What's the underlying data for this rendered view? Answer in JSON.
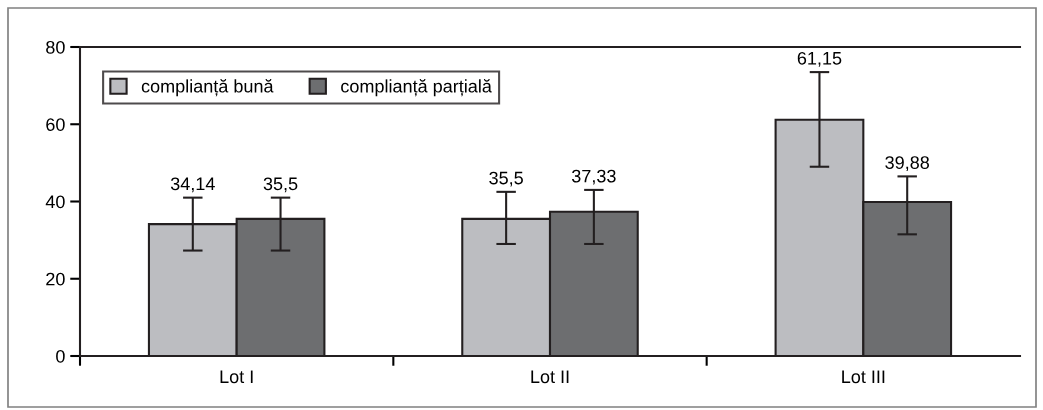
{
  "chart_data": {
    "type": "bar",
    "categories": [
      "Lot I",
      "Lot II",
      "Lot III"
    ],
    "series": [
      {
        "name": "complianță bună",
        "color": "#bcbdc1",
        "values": [
          34.14,
          35.5,
          61.15
        ],
        "value_labels": [
          "34,14",
          "35,5",
          "61,15"
        ],
        "errors": [
          [
            27.3,
            41
          ],
          [
            29,
            42.5
          ],
          [
            49,
            73.5
          ]
        ]
      },
      {
        "name": "complianță parțială",
        "color": "#6d6e70",
        "values": [
          35.5,
          37.33,
          39.88
        ],
        "value_labels": [
          "35,5",
          "37,33",
          "39,88"
        ],
        "errors": [
          [
            27.3,
            41
          ],
          [
            29,
            43
          ],
          [
            31.5,
            46.5
          ]
        ]
      }
    ],
    "ylim": [
      0,
      80
    ],
    "yticks": [
      0,
      20,
      40,
      60,
      80
    ],
    "grid": false,
    "legend": "top left"
  }
}
